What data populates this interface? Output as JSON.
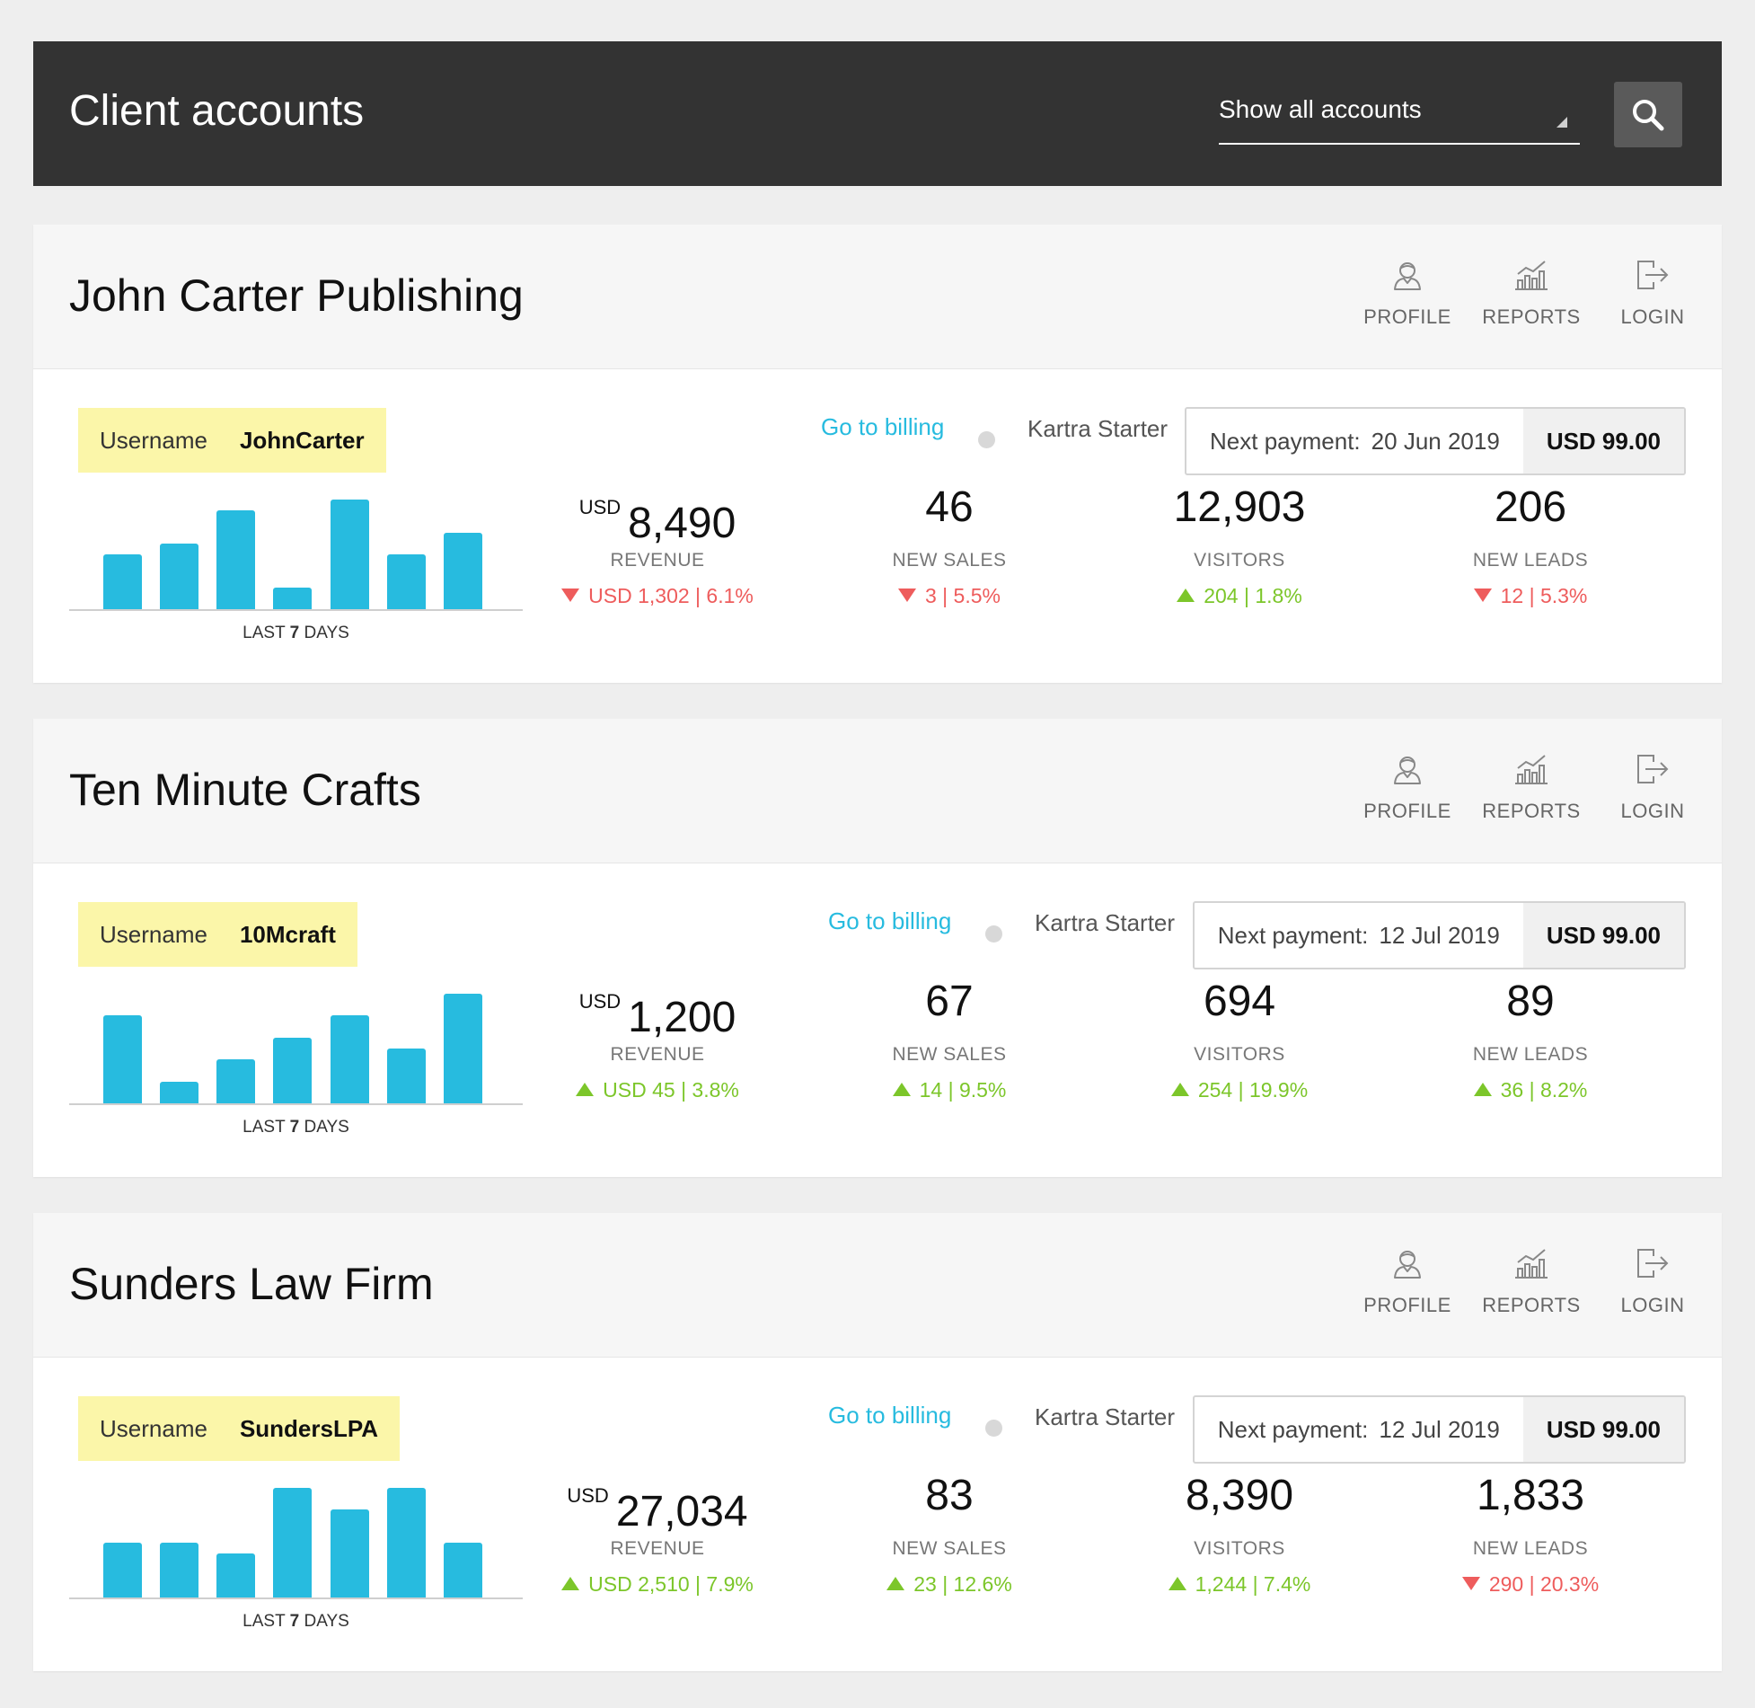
{
  "header": {
    "title": "Client accounts",
    "filter_value": "Show all accounts"
  },
  "colors": {
    "accent": "#27bbdf",
    "header_bg": "#333333",
    "username_bg": "#fbf6a9",
    "positive": "#7cc62a",
    "negative": "#ee5c5c"
  },
  "action_labels": {
    "profile": "PROFILE",
    "reports": "REPORTS",
    "login": "LOGIN"
  },
  "common": {
    "username_label": "Username",
    "billing_link": "Go to billing",
    "next_payment_label": "Next payment:",
    "chart_caption_pre": "LAST",
    "chart_caption_num": "7",
    "chart_caption_post": "DAYS",
    "revenue_currency": "USD",
    "revenue_label": "REVENUE",
    "sales_label": "NEW SALES",
    "visitors_label": "VISITORS",
    "leads_label": "NEW LEADS"
  },
  "accounts": [
    {
      "name": "John Carter Publishing",
      "username": "JohnCarter",
      "plan": "Kartra Starter",
      "next_payment_date": "20 Jun 2019",
      "next_payment_amount": "USD 99.00",
      "revenue": "8,490",
      "revenue_change": "USD 1,302 | 6.1%",
      "revenue_trend": "down",
      "new_sales": "46",
      "new_sales_change": "3 | 5.5%",
      "new_sales_trend": "down",
      "visitors": "12,903",
      "visitors_change": "204 | 1.8%",
      "visitors_trend": "up",
      "new_leads": "206",
      "new_leads_change": "12 | 5.3%",
      "new_leads_trend": "down",
      "last7days": [
        0.5,
        0.6,
        0.9,
        0.2,
        1.0,
        0.5,
        0.7
      ]
    },
    {
      "name": "Ten Minute Crafts",
      "username": "10Mcraft",
      "plan": "Kartra Starter",
      "next_payment_date": "12 Jul 2019",
      "next_payment_amount": "USD 99.00",
      "revenue": "1,200",
      "revenue_change": "USD 45 | 3.8%",
      "revenue_trend": "up",
      "new_sales": "67",
      "new_sales_change": "14 | 9.5%",
      "new_sales_trend": "up",
      "visitors": "694",
      "visitors_change": "254 | 19.9%",
      "visitors_trend": "up",
      "new_leads": "89",
      "new_leads_change": "36 | 8.2%",
      "new_leads_trend": "up",
      "last7days": [
        0.8,
        0.2,
        0.4,
        0.6,
        0.8,
        0.5,
        1.0
      ]
    },
    {
      "name": "Sunders Law Firm",
      "username": "SundersLPA",
      "plan": "Kartra Starter",
      "next_payment_date": "12 Jul 2019",
      "next_payment_amount": "USD 99.00",
      "revenue": "27,034",
      "revenue_change": "USD 2,510 | 7.9%",
      "revenue_trend": "up",
      "new_sales": "83",
      "new_sales_change": "23 | 12.6%",
      "new_sales_trend": "up",
      "visitors": "8,390",
      "visitors_change": "1,244 | 7.4%",
      "visitors_trend": "up",
      "new_leads": "1,833",
      "new_leads_change": "290 | 20.3%",
      "new_leads_trend": "down",
      "last7days": [
        0.5,
        0.5,
        0.4,
        1.0,
        0.8,
        1.0,
        0.5
      ]
    }
  ]
}
